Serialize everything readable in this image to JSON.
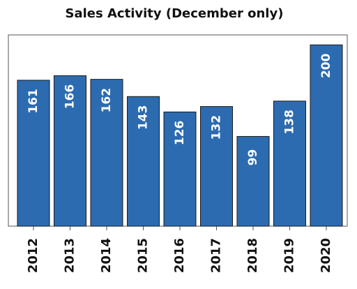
{
  "chart_data": {
    "type": "bar",
    "title": "Sales Activity (December only)",
    "categories": [
      "2012",
      "2013",
      "2014",
      "2015",
      "2016",
      "2017",
      "2018",
      "2019",
      "2020"
    ],
    "values": [
      161,
      166,
      162,
      143,
      126,
      132,
      99,
      138,
      200
    ],
    "color": "#2c6bb0",
    "ylim": [
      0,
      211
    ]
  }
}
